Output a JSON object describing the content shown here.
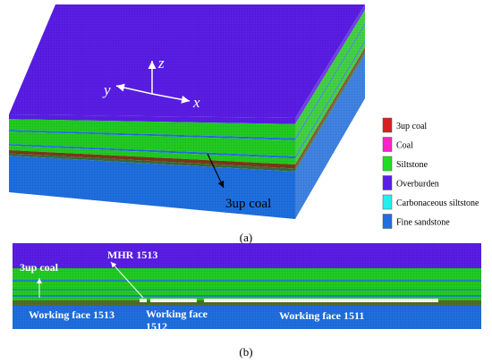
{
  "panel_a": {
    "axis_labels": {
      "z": "z",
      "y": "y",
      "x": "x"
    },
    "annotation": "3up coal",
    "legend": [
      {
        "label": "3up coal",
        "color": "#d62020"
      },
      {
        "label": "Coal",
        "color": "#ff1fc8"
      },
      {
        "label": "Siltstone",
        "color": "#22dd22"
      },
      {
        "label": "Overburden",
        "color": "#5a1ee6"
      },
      {
        "label": "Carbonaceous siltstone",
        "color": "#22f0f0"
      },
      {
        "label": "Fine sandstone",
        "color": "#1f6fe0"
      }
    ],
    "caption": "(a)"
  },
  "panel_b": {
    "labels": {
      "mhr": "MHR 1513",
      "coal": "3up coal",
      "face_1513": "Working face 1513",
      "face_1512": [
        "Working face",
        "1512"
      ],
      "face_1511": "Working face 1511"
    },
    "caption": "(b)"
  }
}
